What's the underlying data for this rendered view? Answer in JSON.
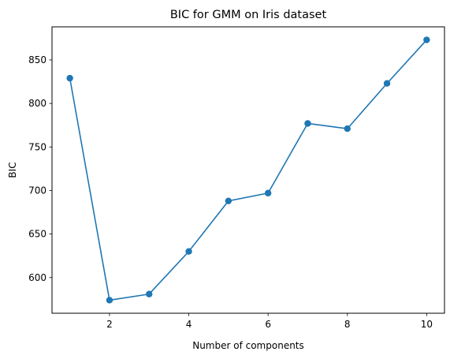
{
  "chart_data": {
    "type": "line",
    "title": "BIC for GMM on Iris dataset",
    "xlabel": "Number of components",
    "ylabel": "BIC",
    "x": [
      1,
      2,
      3,
      4,
      5,
      6,
      7,
      8,
      9,
      10
    ],
    "series": [
      {
        "name": "BIC",
        "values": [
          829,
          574,
          581,
          630,
          688,
          697,
          777,
          771,
          823,
          873
        ],
        "color": "#1f77b4",
        "marker": "circle"
      }
    ],
    "xlim": [
      0.55,
      10.45
    ],
    "ylim": [
      559,
      888
    ],
    "xticks": [
      2,
      4,
      6,
      8,
      10
    ],
    "yticks": [
      600,
      650,
      700,
      750,
      800,
      850
    ],
    "grid": false,
    "legend": false
  }
}
